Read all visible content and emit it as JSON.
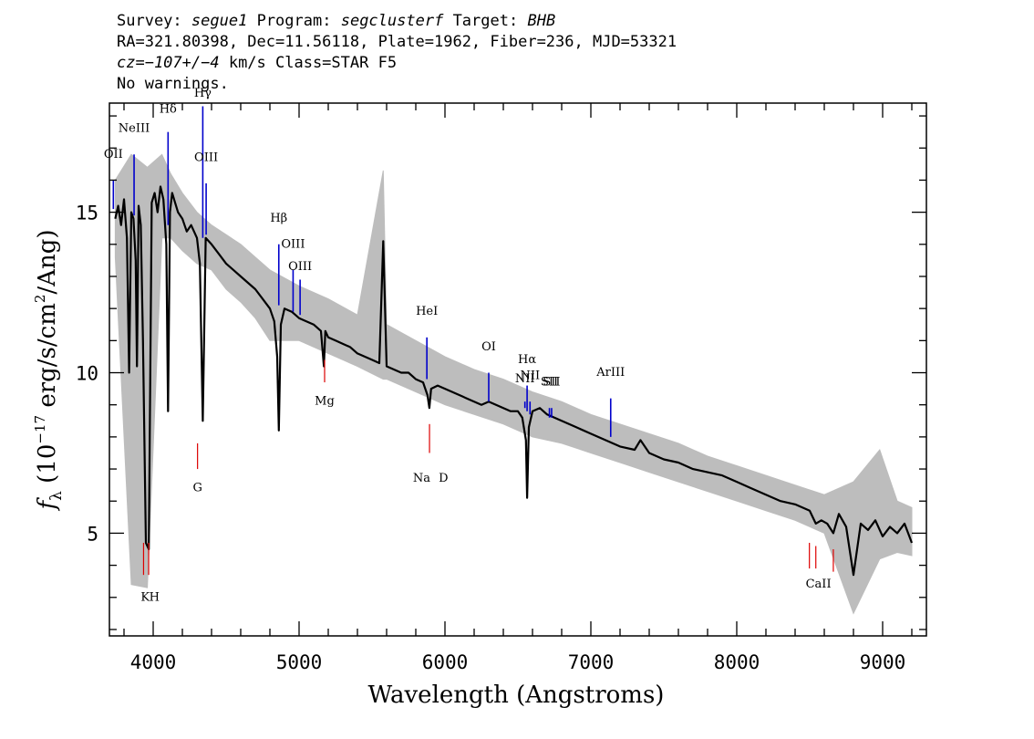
{
  "header": {
    "line1": {
      "survey_label": "Survey:",
      "survey": "segue1",
      "program_label": "Program:",
      "program": "segclusterf",
      "target_label": "Target:",
      "target": "BHB"
    },
    "line2": "RA=321.80398, Dec=11.56118, Plate=1962, Fiber=236, MJD=53321",
    "line3": {
      "cz": "cz=−107+/−4",
      "rest": " km/s Class=STAR F5"
    },
    "line4": "No warnings."
  },
  "chart_data": {
    "type": "line",
    "title": "",
    "xlabel": "Wavelength (Angstroms)",
    "ylabel_parts": {
      "f": "f",
      "sub": "λ",
      "open": " (10",
      "exp1": "−17",
      "mid": " erg/s/cm",
      "exp2": "2",
      "close": "/Ang)"
    },
    "xlim": [
      3700,
      9300
    ],
    "ylim": [
      1.8,
      18.4
    ],
    "x_ticks": [
      4000,
      5000,
      6000,
      7000,
      8000,
      9000
    ],
    "y_ticks": [
      5,
      10,
      15
    ],
    "colors": {
      "flux": "#000000",
      "error": "#bdbdbd",
      "emission": "#0000cc",
      "absorption": "#dd0000"
    },
    "series": [
      {
        "role": "flux",
        "x": [
          3740,
          3760,
          3780,
          3800,
          3820,
          3835,
          3850,
          3865,
          3880,
          3889,
          3900,
          3915,
          3930,
          3950,
          3970,
          3990,
          4010,
          4030,
          4050,
          4070,
          4090,
          4102,
          4115,
          4130,
          4150,
          4170,
          4200,
          4230,
          4260,
          4300,
          4320,
          4340,
          4360,
          4400,
          4450,
          4500,
          4550,
          4600,
          4650,
          4700,
          4750,
          4800,
          4830,
          4850,
          4861,
          4875,
          4900,
          4950,
          5000,
          5050,
          5100,
          5150,
          5170,
          5180,
          5200,
          5250,
          5300,
          5350,
          5400,
          5450,
          5500,
          5550,
          5577,
          5600,
          5650,
          5700,
          5750,
          5800,
          5850,
          5880,
          5893,
          5905,
          5950,
          6000,
          6050,
          6100,
          6150,
          6200,
          6250,
          6300,
          6350,
          6400,
          6450,
          6500,
          6530,
          6555,
          6563,
          6575,
          6600,
          6650,
          6700,
          6800,
          6900,
          7000,
          7100,
          7200,
          7300,
          7340,
          7400,
          7500,
          7600,
          7700,
          7800,
          7900,
          8000,
          8100,
          8200,
          8300,
          8400,
          8450,
          8500,
          8542,
          8580,
          8620,
          8662,
          8700,
          8750,
          8800,
          8850,
          8900,
          8950,
          9000,
          9050,
          9100,
          9150,
          9200
        ],
        "y": [
          14.8,
          15.2,
          14.6,
          15.4,
          14.2,
          10.0,
          15.0,
          14.8,
          13.5,
          10.2,
          15.2,
          14.6,
          11.0,
          4.7,
          4.5,
          15.3,
          15.6,
          15.0,
          15.8,
          15.4,
          14.0,
          8.8,
          15.0,
          15.6,
          15.3,
          15.0,
          14.8,
          14.4,
          14.6,
          14.2,
          13.4,
          8.5,
          14.2,
          14.0,
          13.7,
          13.4,
          13.2,
          13.0,
          12.8,
          12.6,
          12.3,
          12.0,
          11.6,
          10.5,
          8.2,
          11.5,
          12.0,
          11.9,
          11.7,
          11.6,
          11.5,
          11.3,
          10.2,
          11.3,
          11.1,
          11.0,
          10.9,
          10.8,
          10.6,
          10.5,
          10.4,
          10.3,
          14.1,
          10.2,
          10.1,
          10.0,
          10.0,
          9.8,
          9.7,
          9.3,
          8.9,
          9.5,
          9.6,
          9.5,
          9.4,
          9.3,
          9.2,
          9.1,
          9.0,
          9.1,
          9.0,
          8.9,
          8.8,
          8.8,
          8.6,
          7.9,
          6.1,
          8.3,
          8.8,
          8.9,
          8.7,
          8.5,
          8.3,
          8.1,
          7.9,
          7.7,
          7.6,
          7.9,
          7.5,
          7.3,
          7.2,
          7.0,
          6.9,
          6.8,
          6.6,
          6.4,
          6.2,
          6.0,
          5.9,
          5.8,
          5.7,
          5.3,
          5.4,
          5.3,
          5.0,
          5.6,
          5.2,
          3.7,
          5.3,
          5.1,
          5.4,
          4.9,
          5.2,
          5.0,
          5.3,
          4.7
        ]
      },
      {
        "role": "error",
        "x": [
          3740,
          3850,
          3960,
          4060,
          4120,
          4200,
          4300,
          4400,
          4500,
          4600,
          4700,
          4800,
          5000,
          5200,
          5400,
          5577,
          5600,
          5800,
          6000,
          6200,
          6400,
          6600,
          6800,
          7000,
          7200,
          7400,
          7600,
          7800,
          8000,
          8200,
          8400,
          8600,
          8800,
          8980,
          9100,
          9200
        ],
        "upper": [
          16.0,
          16.8,
          16.4,
          16.8,
          16.2,
          15.6,
          15.0,
          14.6,
          14.3,
          14.0,
          13.6,
          13.2,
          12.7,
          12.3,
          11.8,
          16.3,
          11.5,
          11.0,
          10.5,
          10.1,
          9.8,
          9.4,
          9.1,
          8.7,
          8.4,
          8.1,
          7.8,
          7.4,
          7.1,
          6.8,
          6.5,
          6.2,
          6.6,
          7.6,
          6.0,
          5.8
        ],
        "lower": [
          13.6,
          3.4,
          3.3,
          14.2,
          14.2,
          13.8,
          13.4,
          13.2,
          12.6,
          12.2,
          11.7,
          11.0,
          11.0,
          10.6,
          10.2,
          9.8,
          9.8,
          9.4,
          9.0,
          8.7,
          8.4,
          8.0,
          7.8,
          7.5,
          7.2,
          6.9,
          6.6,
          6.3,
          6.0,
          5.7,
          5.4,
          5.0,
          2.5,
          4.2,
          4.4,
          4.3
        ]
      }
    ],
    "emission_lines": [
      {
        "label": "OII",
        "x": 3727,
        "y1": 15.1,
        "y2": 16.0,
        "lab_y": 16.7
      },
      {
        "label": "NeIII",
        "x": 3869,
        "y1": 14.9,
        "y2": 16.8,
        "lab_y": 17.5
      },
      {
        "label": "Hδ",
        "x": 4102,
        "y1": 14.6,
        "y2": 17.5,
        "lab_y": 18.1
      },
      {
        "label": "Hγ",
        "x": 4340,
        "y1": 14.2,
        "y2": 18.3,
        "lab_y": 18.6
      },
      {
        "label": "OIII",
        "x": 4363,
        "y1": 14.3,
        "y2": 15.9,
        "lab_y": 16.6
      },
      {
        "label": "Hβ",
        "x": 4861,
        "y1": 12.1,
        "y2": 14.0,
        "lab_y": 14.7
      },
      {
        "label": "OIII",
        "x": 4959,
        "y1": 11.9,
        "y2": 13.2,
        "lab_y": 13.9
      },
      {
        "label": "OIII",
        "x": 5007,
        "y1": 11.8,
        "y2": 12.9,
        "lab_y": 13.2
      },
      {
        "label": "HeI",
        "x": 5876,
        "y1": 9.8,
        "y2": 11.1,
        "lab_y": 11.8
      },
      {
        "label": "OI",
        "x": 6300,
        "y1": 9.1,
        "y2": 10.0,
        "lab_y": 10.7
      },
      {
        "label": "NII",
        "x": 6548,
        "y1": 8.9,
        "y2": 9.1,
        "lab_y": 9.7
      },
      {
        "label": "Hα",
        "x": 6563,
        "y1": 8.8,
        "y2": 9.6,
        "lab_y": 10.3
      },
      {
        "label": "NII",
        "x": 6583,
        "y1": 8.7,
        "y2": 9.1,
        "lab_y": 9.8
      },
      {
        "label": "SII",
        "x": 6716,
        "y1": 8.6,
        "y2": 8.9,
        "lab_y": 9.6
      },
      {
        "label": "SII",
        "x": 6731,
        "y1": 8.6,
        "y2": 8.9,
        "lab_y": 9.6
      },
      {
        "label": "ArIII",
        "x": 7136,
        "y1": 8.0,
        "y2": 9.2,
        "lab_y": 9.9
      }
    ],
    "absorption_lines": [
      {
        "x": 3934,
        "y1": 3.7,
        "y2": 4.7
      },
      {
        "x": 3969,
        "y1": 3.7,
        "y2": 4.7
      },
      {
        "x": 4304,
        "y1": 7.0,
        "y2": 7.8
      },
      {
        "x": 5175,
        "y1": 9.7,
        "y2": 10.4
      },
      {
        "x": 5894,
        "y1": 7.5,
        "y2": 8.4
      },
      {
        "x": 8498,
        "y1": 3.9,
        "y2": 4.7
      },
      {
        "x": 8542,
        "y1": 3.9,
        "y2": 4.6
      },
      {
        "x": 8662,
        "y1": 3.8,
        "y2": 4.5
      }
    ],
    "absorption_labels": [
      {
        "label": "K",
        "x": 3945,
        "y": 2.9
      },
      {
        "label": "H",
        "x": 4008,
        "y": 2.9
      },
      {
        "label": "G",
        "x": 4304,
        "y": 6.3
      },
      {
        "label": "Mg",
        "x": 5175,
        "y": 9.0
      },
      {
        "label": "Na",
        "x": 5840,
        "y": 6.6
      },
      {
        "label": "D",
        "x": 5990,
        "y": 6.6
      },
      {
        "label": "CaII",
        "x": 8560,
        "y": 3.3
      }
    ]
  }
}
